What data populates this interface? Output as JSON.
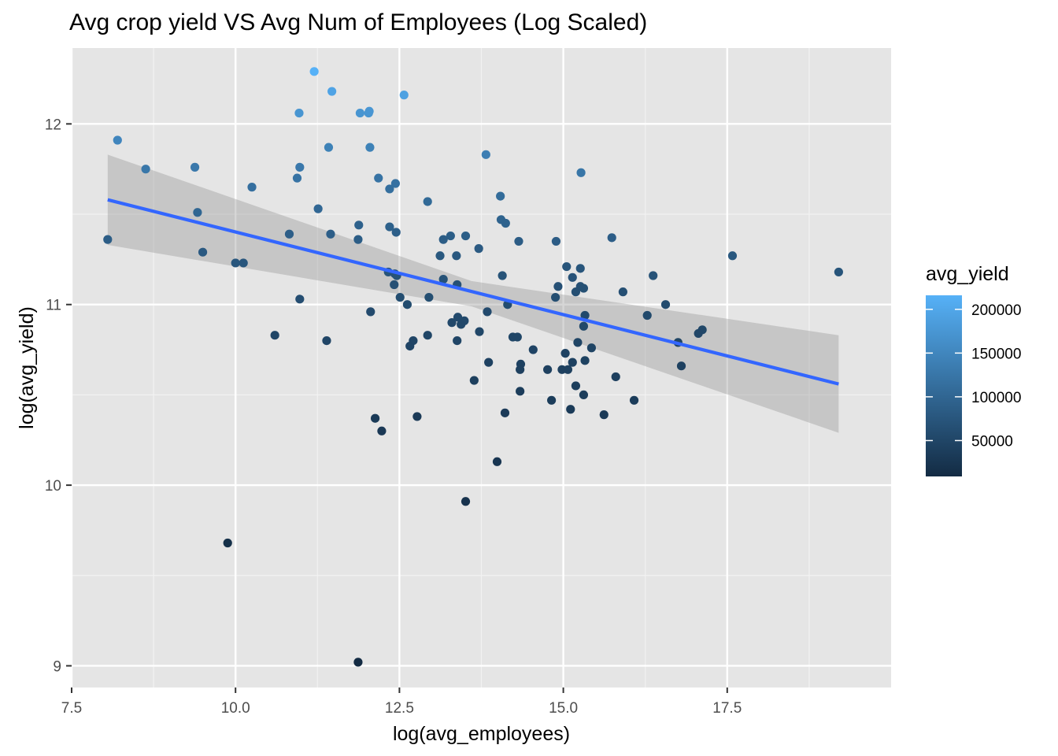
{
  "chart_data": {
    "type": "scatter",
    "title": "Avg crop yield VS Avg Num of Employees (Log Scaled)",
    "xlabel": "log(avg_employees)",
    "ylabel": "log(avg_yield)",
    "xlim": [
      7.5,
      20.0
    ],
    "ylim": [
      8.88,
      12.42
    ],
    "x_ticks": [
      7.5,
      10.0,
      12.5,
      15.0,
      17.5
    ],
    "x_tick_labels": [
      "7.5",
      "10.0",
      "12.5",
      "15.0",
      "17.5"
    ],
    "y_ticks": [
      9,
      10,
      11,
      12
    ],
    "y_tick_labels": [
      "9",
      "10",
      "11",
      "12"
    ],
    "grid": true,
    "background": "#e5e5e5",
    "legend": {
      "title": "avg_yield",
      "placement": "right",
      "ticks": [
        50000,
        100000,
        150000,
        200000
      ],
      "tick_labels": [
        "50000",
        "100000",
        "150000",
        "200000"
      ],
      "range": [
        9000,
        216000
      ],
      "low_color": "#132b43",
      "high_color": "#56b1f7"
    },
    "trend_line": {
      "method": "linear",
      "color": "#3366ff",
      "x_range": [
        8.05,
        19.2
      ],
      "start": [
        8.05,
        11.58
      ],
      "end": [
        19.2,
        10.56
      ],
      "band_color": "#999999",
      "band": [
        {
          "x": 8.05,
          "lower": 11.33,
          "upper": 11.83
        },
        {
          "x": 13.6,
          "lower": 10.99,
          "upper": 11.13
        },
        {
          "x": 19.2,
          "lower": 10.29,
          "upper": 10.83
        }
      ]
    },
    "points": [
      [
        11.2,
        12.29
      ],
      [
        11.47,
        12.18
      ],
      [
        12.57,
        12.16
      ],
      [
        10.97,
        12.06
      ],
      [
        11.9,
        12.06
      ],
      [
        12.03,
        12.06
      ],
      [
        12.04,
        12.07
      ],
      [
        8.2,
        11.91
      ],
      [
        11.42,
        11.87
      ],
      [
        12.05,
        11.87
      ],
      [
        13.82,
        11.83
      ],
      [
        8.63,
        11.75
      ],
      [
        9.38,
        11.76
      ],
      [
        10.98,
        11.76
      ],
      [
        15.27,
        11.73
      ],
      [
        10.94,
        11.7
      ],
      [
        12.18,
        11.7
      ],
      [
        12.44,
        11.67
      ],
      [
        10.25,
        11.65
      ],
      [
        12.35,
        11.64
      ],
      [
        14.04,
        11.6
      ],
      [
        12.93,
        11.57
      ],
      [
        11.26,
        11.53
      ],
      [
        9.42,
        11.51
      ],
      [
        14.05,
        11.47
      ],
      [
        14.12,
        11.45
      ],
      [
        11.88,
        11.44
      ],
      [
        12.35,
        11.43
      ],
      [
        12.45,
        11.4
      ],
      [
        10.82,
        11.39
      ],
      [
        11.45,
        11.39
      ],
      [
        13.28,
        11.38
      ],
      [
        13.51,
        11.38
      ],
      [
        15.74,
        11.37
      ],
      [
        8.05,
        11.36
      ],
      [
        11.87,
        11.36
      ],
      [
        13.17,
        11.36
      ],
      [
        14.32,
        11.35
      ],
      [
        14.89,
        11.35
      ],
      [
        13.71,
        11.31
      ],
      [
        9.5,
        11.29
      ],
      [
        13.12,
        11.27
      ],
      [
        13.37,
        11.27
      ],
      [
        17.58,
        11.27
      ],
      [
        10.0,
        11.23
      ],
      [
        10.12,
        11.23
      ],
      [
        15.05,
        11.21
      ],
      [
        15.26,
        11.2
      ],
      [
        12.33,
        11.18
      ],
      [
        12.43,
        11.17
      ],
      [
        12.46,
        11.16
      ],
      [
        14.07,
        11.16
      ],
      [
        15.14,
        11.15
      ],
      [
        16.37,
        11.16
      ],
      [
        19.2,
        11.18
      ],
      [
        13.17,
        11.14
      ],
      [
        12.42,
        11.11
      ],
      [
        13.38,
        11.11
      ],
      [
        14.92,
        11.1
      ],
      [
        15.26,
        11.1
      ],
      [
        15.31,
        11.09
      ],
      [
        15.19,
        11.07
      ],
      [
        15.91,
        11.07
      ],
      [
        12.51,
        11.04
      ],
      [
        12.95,
        11.04
      ],
      [
        14.88,
        11.04
      ],
      [
        10.98,
        11.03
      ],
      [
        12.62,
        11.0
      ],
      [
        14.15,
        11.0
      ],
      [
        16.56,
        11.0
      ],
      [
        12.06,
        10.96
      ],
      [
        13.84,
        10.96
      ],
      [
        15.33,
        10.94
      ],
      [
        16.28,
        10.94
      ],
      [
        13.3,
        10.9
      ],
      [
        13.39,
        10.93
      ],
      [
        13.49,
        10.91
      ],
      [
        13.44,
        10.89
      ],
      [
        15.31,
        10.88
      ],
      [
        17.12,
        10.86
      ],
      [
        17.06,
        10.84
      ],
      [
        10.6,
        10.83
      ],
      [
        12.93,
        10.83
      ],
      [
        13.72,
        10.85
      ],
      [
        14.23,
        10.82
      ],
      [
        14.3,
        10.82
      ],
      [
        11.39,
        10.8
      ],
      [
        12.71,
        10.8
      ],
      [
        13.38,
        10.8
      ],
      [
        15.22,
        10.79
      ],
      [
        16.75,
        10.79
      ],
      [
        12.66,
        10.77
      ],
      [
        15.43,
        10.76
      ],
      [
        14.54,
        10.75
      ],
      [
        15.03,
        10.73
      ],
      [
        15.33,
        10.69
      ],
      [
        15.14,
        10.68
      ],
      [
        13.86,
        10.68
      ],
      [
        14.35,
        10.67
      ],
      [
        16.8,
        10.66
      ],
      [
        14.34,
        10.64
      ],
      [
        14.76,
        10.64
      ],
      [
        14.98,
        10.64
      ],
      [
        15.07,
        10.64
      ],
      [
        15.8,
        10.6
      ],
      [
        13.64,
        10.58
      ],
      [
        15.19,
        10.55
      ],
      [
        14.34,
        10.52
      ],
      [
        15.31,
        10.5
      ],
      [
        14.82,
        10.47
      ],
      [
        16.08,
        10.47
      ],
      [
        15.11,
        10.42
      ],
      [
        14.11,
        10.4
      ],
      [
        15.62,
        10.39
      ],
      [
        12.77,
        10.38
      ],
      [
        12.13,
        10.37
      ],
      [
        12.23,
        10.3
      ],
      [
        13.99,
        10.13
      ],
      [
        13.51,
        9.91
      ],
      [
        9.88,
        9.68
      ],
      [
        11.87,
        9.02
      ]
    ]
  }
}
